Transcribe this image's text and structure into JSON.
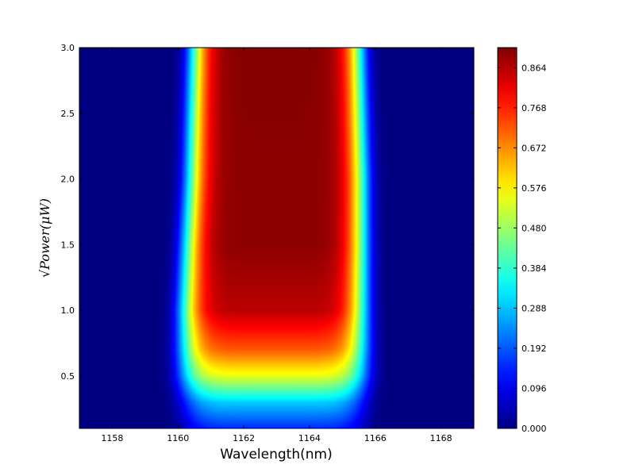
{
  "chart_data": {
    "type": "heatmap",
    "title": "",
    "xlabel": "Wavelength(nm)",
    "ylabel": "√Power(μW)",
    "xlim": [
      1157,
      1169
    ],
    "ylim": [
      0.1,
      3.0
    ],
    "x_ticks": [
      1158,
      1160,
      1162,
      1164,
      1166,
      1168
    ],
    "y_ticks": [
      0.5,
      1.0,
      1.5,
      2.0,
      2.5,
      3.0
    ],
    "x_tick_labels": [
      "1158",
      "1160",
      "1162",
      "1164",
      "1166",
      "1168"
    ],
    "y_tick_labels": [
      "0.5",
      "1.0",
      "1.5",
      "2.0",
      "2.5",
      "3.0"
    ],
    "colorbar": {
      "min": 0.0,
      "max": 0.912,
      "colormap": "jet",
      "ticks": [
        0.0,
        0.096,
        0.192,
        0.288,
        0.384,
        0.48,
        0.576,
        0.672,
        0.768,
        0.864
      ],
      "tick_labels": [
        "0.000",
        "0.096",
        "0.192",
        "0.288",
        "0.384",
        "0.480",
        "0.576",
        "0.672",
        "0.768",
        "0.864"
      ]
    },
    "center_wavelength": [
      {
        "y": 0.1,
        "x": 1162.9
      },
      {
        "y": 1.0,
        "x": 1162.9
      },
      {
        "y": 2.0,
        "x": 1163.0
      },
      {
        "y": 3.0,
        "x": 1163.0
      }
    ],
    "half_width": [
      {
        "y": 0.1,
        "w": 2.6
      },
      {
        "y": 0.5,
        "w": 2.7
      },
      {
        "y": 1.0,
        "w": 2.65
      },
      {
        "y": 1.5,
        "w": 2.6
      },
      {
        "y": 2.0,
        "w": 2.55
      },
      {
        "y": 2.5,
        "w": 2.5
      },
      {
        "y": 3.0,
        "w": 2.45
      }
    ],
    "peak_level": [
      {
        "y": 0.1,
        "v": 0.15
      },
      {
        "y": 0.3,
        "v": 0.3
      },
      {
        "y": 0.5,
        "v": 0.55
      },
      {
        "y": 0.7,
        "v": 0.72
      },
      {
        "y": 1.0,
        "v": 0.86
      },
      {
        "y": 1.5,
        "v": 0.9
      },
      {
        "y": 2.0,
        "v": 0.9
      },
      {
        "y": 3.0,
        "v": 0.905
      }
    ]
  }
}
